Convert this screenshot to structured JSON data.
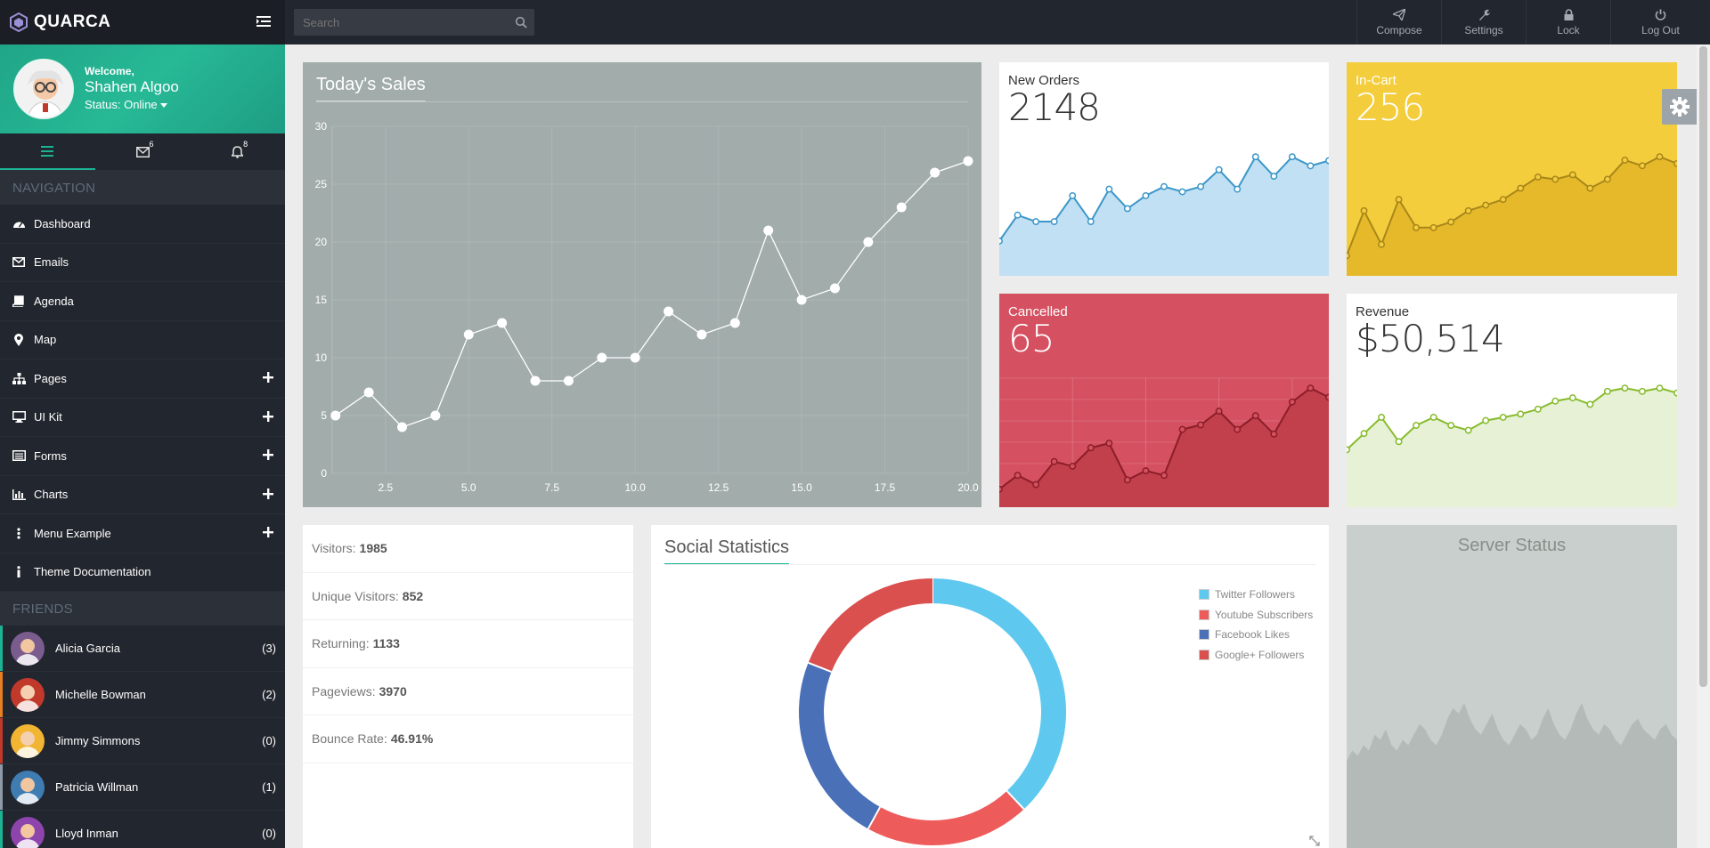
{
  "brand": {
    "name": "QUARCA"
  },
  "profile": {
    "welcome": "Welcome,",
    "name": "Shahen Algoo",
    "status": "Status: Online"
  },
  "sidetabs": [
    {
      "icon": "menu-icon",
      "badge": ""
    },
    {
      "icon": "envelope-icon",
      "badge": "6"
    },
    {
      "icon": "bell-icon",
      "badge": "8"
    }
  ],
  "navigation": {
    "heading": "NAVIGATION",
    "items": [
      {
        "label": "Dashboard",
        "icon": "dashboard-icon",
        "expandable": false
      },
      {
        "label": "Emails",
        "icon": "envelope-icon",
        "expandable": false
      },
      {
        "label": "Agenda",
        "icon": "book-icon",
        "expandable": false
      },
      {
        "label": "Map",
        "icon": "map-marker-icon",
        "expandable": false
      },
      {
        "label": "Pages",
        "icon": "sitemap-icon",
        "expandable": true
      },
      {
        "label": "UI Kit",
        "icon": "desktop-icon",
        "expandable": true
      },
      {
        "label": "Forms",
        "icon": "list-icon",
        "expandable": true
      },
      {
        "label": "Charts",
        "icon": "bar-chart-icon",
        "expandable": true
      },
      {
        "label": "Menu Example",
        "icon": "ellipsis-icon",
        "expandable": true
      },
      {
        "label": "Theme Documentation",
        "icon": "info-icon",
        "expandable": false
      }
    ]
  },
  "friends": {
    "heading": "FRIENDS",
    "items": [
      {
        "name": "Alicia Garcia",
        "count": "(3)",
        "color": "#1ab394"
      },
      {
        "name": "Michelle Bowman",
        "count": "(2)",
        "color": "#e67e22"
      },
      {
        "name": "Jimmy Simmons",
        "count": "(0)",
        "color": "#c0392b"
      },
      {
        "name": "Patricia Willman",
        "count": "(1)",
        "color": "#8e9aa6"
      },
      {
        "name": "Lloyd Inman",
        "count": "(0)",
        "color": "#1ab394"
      }
    ]
  },
  "topbar": {
    "search_placeholder": "Search",
    "buttons": [
      {
        "label": "Compose",
        "icon": "paper-plane-icon"
      },
      {
        "label": "Settings",
        "icon": "wrench-icon"
      },
      {
        "label": "Lock",
        "icon": "lock-icon"
      },
      {
        "label": "Log Out",
        "icon": "power-icon"
      }
    ]
  },
  "sales": {
    "title": "Today's Sales",
    "chart_data": {
      "type": "line",
      "x": [
        1,
        2,
        3,
        4,
        5,
        6,
        7,
        8,
        9,
        10,
        11,
        12,
        13,
        14,
        15,
        16,
        17,
        18,
        19,
        20
      ],
      "values": [
        5,
        7,
        4,
        5,
        12,
        13,
        8,
        8,
        10,
        10,
        14,
        12,
        13,
        21,
        15,
        16,
        20,
        23,
        26,
        27
      ],
      "xticks": [
        "2.5",
        "5.0",
        "7.5",
        "10.0",
        "12.5",
        "15.0",
        "17.5",
        "20.0"
      ],
      "yticks": [
        "0",
        "5",
        "10",
        "15",
        "20",
        "25",
        "30"
      ],
      "xlim": [
        0.9,
        20
      ],
      "ylim": [
        0,
        30
      ]
    }
  },
  "stats": {
    "new_orders": {
      "label": "New Orders",
      "value": "2148",
      "bg": "#ffffff",
      "fg": "#333333",
      "line": "#3b97c8",
      "fill": "#c2e0f3",
      "series": [
        2,
        4,
        3.5,
        3.5,
        5.5,
        3.5,
        6,
        4.5,
        5.5,
        6.2,
        5.8,
        6.2,
        7.5,
        6,
        8.5,
        7,
        8.5,
        7.8,
        8.2
      ]
    },
    "in_cart": {
      "label": "In-Cart",
      "value": "256",
      "bg": "#f4cd3c",
      "fg": "#ffffff",
      "line": "#a8861a",
      "fill": "#e5b92a",
      "series": [
        1,
        5,
        2,
        6,
        3.5,
        3.5,
        4,
        5,
        5.5,
        6,
        7,
        8,
        7.8,
        8.2,
        7,
        7.8,
        9.5,
        9,
        9.8,
        9.2
      ]
    },
    "cancelled": {
      "label": "Cancelled",
      "value": "65",
      "bg": "#d55060",
      "fg": "#ffffff",
      "line": "#8b1e28",
      "fill": "#c23f4c",
      "series": [
        1,
        2.5,
        1.5,
        4,
        3.5,
        5.5,
        6,
        2,
        3,
        2.5,
        7.5,
        8,
        9.5,
        7.5,
        9,
        7,
        10.5,
        12,
        11
      ]
    },
    "revenue": {
      "label": "Revenue",
      "value": "$50,514",
      "bg": "#ffffff",
      "fg": "#333333",
      "line": "#86bb2a",
      "fill": "#e6f1d6",
      "series": [
        3,
        4,
        5,
        3.5,
        4.5,
        5,
        4.5,
        4.2,
        4.8,
        5,
        5.2,
        5.5,
        6,
        6.2,
        5.8,
        6.6,
        6.8,
        6.6,
        6.8,
        6.5
      ]
    }
  },
  "visitors": [
    {
      "label": "Visitors:",
      "value": "1985"
    },
    {
      "label": "Unique Visitors:",
      "value": "852"
    },
    {
      "label": "Returning:",
      "value": "1133"
    },
    {
      "label": "Pageviews:",
      "value": "3970"
    },
    {
      "label": "Bounce Rate:",
      "value": "46.91%"
    }
  ],
  "social": {
    "title": "Social Statistics",
    "chart_data": {
      "type": "pie",
      "labels": [
        "Twitter Followers",
        "Youtube Subscribers",
        "Facebook Likes",
        "Google+ Followers"
      ],
      "values": [
        38,
        20,
        23,
        19
      ],
      "colors": [
        "#5ec8ef",
        "#ee5b5b",
        "#4a70b8",
        "#d9504f"
      ]
    }
  },
  "server": {
    "title": "Server Status",
    "series": [
      3,
      5,
      4,
      6,
      5,
      8,
      7,
      9,
      6,
      5,
      7,
      6,
      8,
      10,
      9,
      7,
      6,
      8,
      11,
      13,
      12,
      14,
      11,
      9,
      8,
      10,
      12,
      9,
      7,
      6,
      8,
      10,
      9,
      7,
      8,
      11,
      13,
      10,
      8,
      7,
      9,
      12,
      14,
      11,
      9,
      8,
      10,
      9,
      7,
      6,
      8,
      10,
      11,
      9,
      8,
      7,
      9,
      10,
      8,
      7
    ]
  }
}
